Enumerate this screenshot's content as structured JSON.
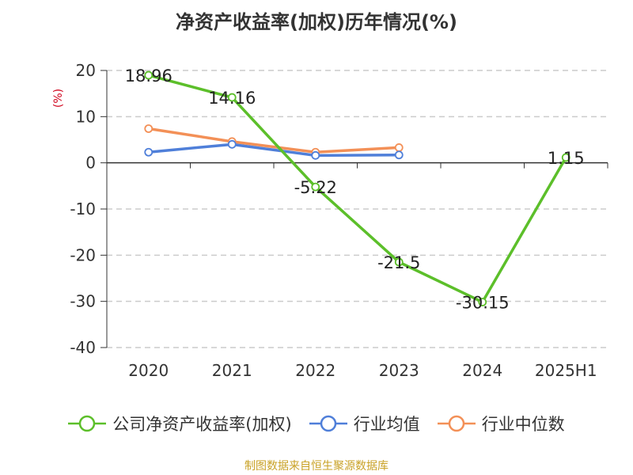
{
  "chart_data": {
    "type": "line",
    "title": "净资产收益率(加权)历年情况(%)",
    "ylabel": "(%)",
    "xlabel": "",
    "categories": [
      "2020",
      "2021",
      "2022",
      "2023",
      "2024",
      "2025H1"
    ],
    "ylim": [
      -40,
      20
    ],
    "yticks": [
      20,
      10,
      0,
      -10,
      -20,
      -30,
      -40
    ],
    "grid": true,
    "legend_position": "bottom",
    "series": [
      {
        "name": "公司净资产收益率(加权)",
        "color": "#5cbf2a",
        "values": [
          18.96,
          14.16,
          -5.22,
          -21.5,
          -30.15,
          1.15
        ],
        "labels": [
          "18.96",
          "14.16",
          "-5.22",
          "-21.5",
          "-30.15",
          "1.15"
        ]
      },
      {
        "name": "行业均值",
        "color": "#4f7fd9",
        "values": [
          2.3,
          4.0,
          1.6,
          1.7,
          null,
          null
        ]
      },
      {
        "name": "行业中位数",
        "color": "#f39057",
        "values": [
          7.4,
          4.6,
          2.3,
          3.3,
          null,
          null
        ]
      }
    ]
  },
  "source": "制图数据来自恒生聚源数据库"
}
